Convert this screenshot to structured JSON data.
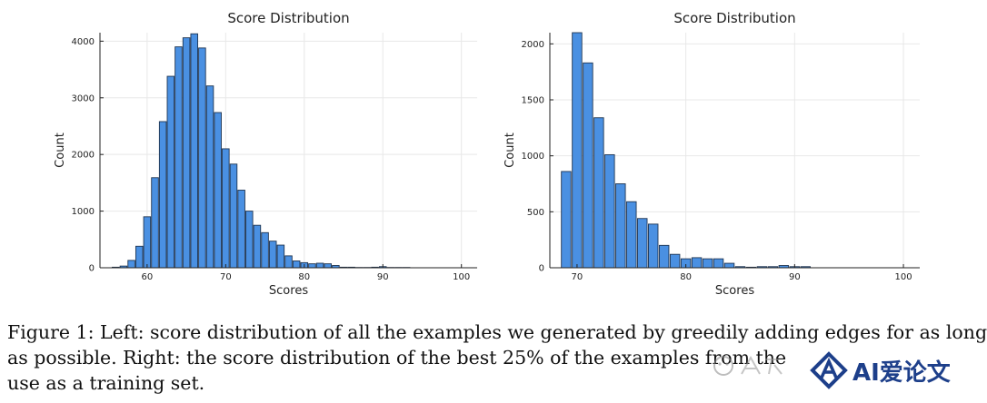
{
  "chart_data": [
    {
      "type": "bar",
      "title": "Score Distribution",
      "xlabel": "Scores",
      "ylabel": "Count",
      "xlim": [
        54,
        102
      ],
      "ylim": [
        0,
        4150
      ],
      "xticks": [
        60,
        70,
        80,
        90,
        100
      ],
      "yticks": [
        0,
        1000,
        2000,
        3000,
        4000
      ],
      "grid": true,
      "bin_width": 1,
      "x": [
        56,
        57,
        58,
        59,
        60,
        61,
        62,
        63,
        64,
        65,
        66,
        67,
        68,
        69,
        70,
        71,
        72,
        73,
        74,
        75,
        76,
        77,
        78,
        79,
        80,
        81,
        82,
        83,
        84,
        85,
        86,
        87,
        88,
        89,
        90,
        91,
        92,
        93
      ],
      "values": [
        10,
        30,
        130,
        380,
        900,
        1590,
        2580,
        3380,
        3900,
        4060,
        4130,
        3880,
        3210,
        2740,
        2100,
        1830,
        1370,
        1000,
        750,
        620,
        470,
        400,
        210,
        120,
        90,
        70,
        80,
        70,
        40,
        10,
        10,
        5,
        5,
        10,
        20,
        5,
        5,
        5
      ],
      "color": "#4a90e2"
    },
    {
      "type": "bar",
      "title": "Score Distribution",
      "xlabel": "Scores",
      "ylabel": "Count",
      "xlim": [
        67.5,
        101.5
      ],
      "ylim": [
        0,
        2100
      ],
      "xticks": [
        70,
        80,
        90,
        100
      ],
      "yticks": [
        0,
        500,
        1000,
        1500,
        2000
      ],
      "grid": true,
      "bin_width": 1,
      "x": [
        69,
        70,
        71,
        72,
        73,
        74,
        75,
        76,
        77,
        78,
        79,
        80,
        81,
        82,
        83,
        84,
        85,
        86,
        87,
        88,
        89,
        90,
        91
      ],
      "values": [
        860,
        2100,
        1830,
        1340,
        1010,
        750,
        590,
        440,
        390,
        200,
        120,
        80,
        90,
        80,
        80,
        40,
        10,
        5,
        10,
        10,
        20,
        10,
        10
      ],
      "color": "#4a90e2"
    }
  ],
  "caption": {
    "lines": [
      "Figure 1: Left: score distribution of all the examples we generated by greedily adding edges for as long",
      "as possible. Right: the score distribution of the best 25% of the examples from the",
      "use as a training set."
    ]
  },
  "watermark": {
    "text": "AI爱论文",
    "color": "#1d3f8a"
  }
}
